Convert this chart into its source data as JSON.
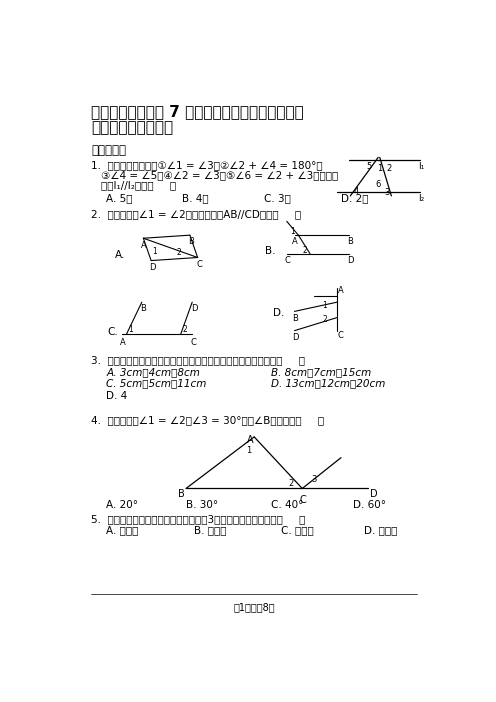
{
  "title_line1": "七年级数学下册第 7 章平面图形的认识（二）教学",
  "title_line2": "质量检测（附答案）",
  "bg_color": "#ffffff",
  "q1_text1": "1.  如图，下列条件：①∠1 = ∠3，②∠2 + ∠4 = 180°，",
  "q1_text2": "③∠4 = ∠5，④∠2 = ∠3，⑤∠6 = ∠2 + ∠3中能判断",
  "q1_text3": "直线l₁//l₂的有（     ）",
  "q1_a": "A. 5个",
  "q1_b": "B. 4个",
  "q1_c": "C. 3个",
  "q1_d": "D. 2个",
  "q2_text": "2.  如图，已知∠1 = ∠2，其中能判定AB//CD的是（     ）",
  "q3_text": "3.  下列每组数分别是三根木棒的长度，能用它们摆成三角形的是（     ）",
  "q3_a": "A. 3cm，4cm，8cm",
  "q3_b": "B. 8cm，7cm，15cm",
  "q3_c": "C. 5cm，5cm，11cm",
  "q3_d": "D. 13cm，12cm，20cm",
  "q3_ans": "D. 4",
  "q4_text": "4.  如图，已知∠1 = ∠2，∠3 = 30°，则∠B的度数是（     ）",
  "q4_a": "A. 20°",
  "q4_b": "B. 30°",
  "q4_c": "C. 40°",
  "q4_d": "D. 60°",
  "q5_text": "5.  如果一个多边形的内角和是外角和的3倍，那么这个多边形是（     ）",
  "q5_a": "A. 四边形",
  "q5_b": "B. 六边形",
  "q5_c": "C. 八边形",
  "q5_d": "D. 十边形",
  "section1": "一、选择题",
  "footer": "第1页，共8页"
}
